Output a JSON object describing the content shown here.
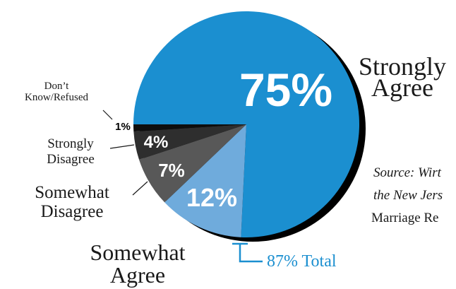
{
  "chart_data": {
    "type": "pie",
    "categories": [
      "Strongly Agree",
      "Somewhat Agree",
      "Somewhat Disagree",
      "Strongly Disagree",
      "Don't Know/Refused"
    ],
    "values": [
      75,
      12,
      7,
      4,
      1
    ],
    "value_labels": [
      "75%",
      "12%",
      "7%",
      "4%",
      "1%"
    ],
    "category_label_lines": [
      [
        "Strongly",
        "Agree"
      ],
      [
        "Somewhat",
        "Agree"
      ],
      [
        "Somewhat",
        "Disagree"
      ],
      [
        "Strongly",
        "Disagree"
      ],
      [
        "Don’t",
        "Know/Refused"
      ]
    ],
    "colors": [
      "#1b8fd0",
      "#6fabdc",
      "#585858",
      "#2e2e2e",
      "#0e0e0e"
    ],
    "shadow_color": "#000000",
    "start_direction": "left (9 o'clock), clockwise",
    "bracket": {
      "label": "87% Total",
      "spans": [
        "Strongly Agree",
        "Somewhat Agree"
      ],
      "color": "#1b8fd0"
    },
    "source_lines": [
      "Source: Wirt",
      "the New Jers",
      "Marriage Re"
    ]
  }
}
